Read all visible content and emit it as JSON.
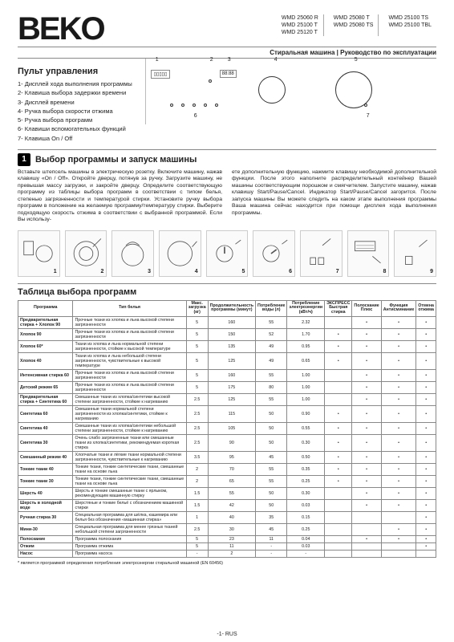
{
  "header": {
    "brand": "BEKO",
    "model_cols": [
      [
        "WMD 25060 R",
        "WMD 25100 T",
        "WMD 25120 T"
      ],
      [
        "WMD 25080 T",
        "WMD 25080 TS"
      ],
      [
        "WMD 25100 TS",
        "WMD 25100 TBL"
      ]
    ],
    "subtitle": "Стиральная машина  |  Руководство по эксплуатации"
  },
  "panel": {
    "title": "Пульт управления",
    "items": [
      "1- Дисплей хода выполнения программы",
      "2- Клавиша выбора задержки времени",
      "3- Дисплей времени",
      "4- Ручка выбора скорости отжима",
      "5- Ручка выбора программ",
      "6- Клавиши вспомогательных функций",
      "7- Клавиша On / Off"
    ],
    "callouts": [
      "1",
      "2",
      "3",
      "4",
      "5",
      "6",
      "7"
    ]
  },
  "section1": {
    "badge": "1",
    "title": "Выбор программы и запуск машины",
    "col1": "Вставьте штепсель машины в электрическую розетку. Включите машину, нажав клавишу «On / Off». Откройте дверцу, потянув за ручку. Загрузите машину, не превышая массу загрузки, и закройте дверцу. Определите соответствующую программу из таблицы выбора программ в соответствии с типом белья, степенью загрязненности и температурой стирки. Установите ручку выбора программ в положение на желаемую программу/температуру стирки. Выберите подходящую скорость отжима в соответствии с выбранной программой. Если Вы использу-",
    "col2": "ете дополнительную функцию, нажмите клавишу необходимой дополнительной функции.\nПосле этого наполните распределительный контейнер Вашей машины соответствующим порошком и смягчителем. Запустите машину, нажав клавишу Start/Pause/Cancel. Индикатор Start/Pause/Cancel загорится. После запуска машины Вы можете следить на каком этапе выполнения программы Ваша машина сейчас находится при помощи дисплея хода выполнения программы."
  },
  "illustrations": [
    1,
    2,
    3,
    4,
    5,
    6,
    7,
    8,
    9
  ],
  "table": {
    "title": "Таблица выбора программ",
    "headers": [
      "Программа",
      "Тип белья",
      "Макс. загрузка (кг)",
      "Продолжительность программы (минут)",
      "Потребление воды (л)",
      "Потребление электроэнергии (кВт/ч)",
      "ЭКСПРЕСС Быстрая стирка",
      "Полоскание Плюс",
      "Функция Антисминание",
      "Отмена отжима"
    ],
    "rows": [
      {
        "n": "Предварительная стирка + Хлопок 90",
        "d": "Прочные ткани из хлопка и льна высокой степени загрязненности",
        "v": [
          "5",
          "160",
          "55",
          "2.32",
          "",
          "•",
          "•",
          "•"
        ]
      },
      {
        "n": "Хлопок 90",
        "d": "Прочные ткани из хлопка и льна высокой степени загрязненности",
        "v": [
          "5",
          "150",
          "52",
          "1.70",
          "•",
          "•",
          "•",
          "•"
        ]
      },
      {
        "n": "Хлопок 60*",
        "d": "Ткани из хлопка и льна нормальной степени загрязненности, стойкие к высокой температуре",
        "v": [
          "5",
          "135",
          "49",
          "0.95",
          "•",
          "•",
          "•",
          "•"
        ]
      },
      {
        "n": "Хлопок 40",
        "d": "Ткани из хлопка и льна небольшой степени загрязненности, чувствительные к высокой температуре",
        "v": [
          "5",
          "125",
          "49",
          "0.65",
          "•",
          "•",
          "•",
          "•"
        ]
      },
      {
        "n": "Интенсивная стирка 60",
        "d": "Прочные ткани из хлопка и льна высокой степени загрязненности",
        "v": [
          "5",
          "160",
          "55",
          "1.00",
          "",
          "•",
          "•",
          "•"
        ]
      },
      {
        "n": "Детский режим 65",
        "d": "Прочные ткани из хлопка и льна высокой степени загрязненности",
        "v": [
          "5",
          "175",
          "80",
          "1.00",
          "",
          "•",
          "•",
          "•"
        ]
      },
      {
        "n": "Предварительная стирка + Синтетика 60",
        "d": "Смешанные ткани из хлопка/синтетики высокой степени загрязненности, стойкие к нагреванию",
        "v": [
          "2.5",
          "125",
          "55",
          "1.00",
          "",
          "•",
          "•",
          "•"
        ]
      },
      {
        "n": "Синтетика 60",
        "d": "Смешанные ткани нормальной степени загрязненности из хлопка/синтетики, стойкие к нагреванию",
        "v": [
          "2.5",
          "115",
          "50",
          "0.90",
          "•",
          "•",
          "•",
          "•"
        ]
      },
      {
        "n": "Синтетика 40",
        "d": "Смешанные ткани из хлопка/синтетики небольшой степени загрязненности, стойкие к нагреванию",
        "v": [
          "2.5",
          "105",
          "50",
          "0.55",
          "•",
          "•",
          "•",
          "•"
        ]
      },
      {
        "n": "Синтетика 30",
        "d": "Очень слабо загрязненные ткани или смешанные ткани из хлопка/синтетики, рекомендуемая короткая стирка",
        "v": [
          "2.5",
          "90",
          "50",
          "0.30",
          "•",
          "•",
          "•",
          "•"
        ]
      },
      {
        "n": "Смешанный режим 40",
        "d": "Хлопчатые ткани и лёгкие ткани нормальной степени загрязненности, чувствительные к нагреванию",
        "v": [
          "3.5",
          "95",
          "45",
          "0.50",
          "•",
          "•",
          "•",
          "•"
        ]
      },
      {
        "n": "Тонкие ткани 40",
        "d": "Тонкие ткани, тонкие синтетические ткани, смешанные ткани на основе льна",
        "v": [
          "2",
          "70",
          "55",
          "0.35",
          "•",
          "•",
          "•",
          "•"
        ]
      },
      {
        "n": "Тонкие ткани 30",
        "d": "Тонкие ткани, тонкие синтетические ткани, смешанные ткани на основе льна",
        "v": [
          "2",
          "65",
          "55",
          "0.25",
          "•",
          "•",
          "•",
          "•"
        ]
      },
      {
        "n": "Шерсть 40",
        "d": "Шерсть и тонкие смешанные ткани с ярлыком, рекомендующим машинную стирку",
        "v": [
          "1.5",
          "55",
          "50",
          "0.30",
          "",
          "•",
          "•",
          "•"
        ]
      },
      {
        "n": "Шерсть в холодной воде",
        "d": "Шерстяные и тонкие бельё с обозначением машинной стирки",
        "v": [
          "1.5",
          "42",
          "50",
          "0.03",
          "",
          "•",
          "•",
          "•"
        ]
      },
      {
        "n": "Ручная стирка 30",
        "d": "Специальная программа для шёлка, кашемира или белья без обозначения «машинная стирка»",
        "v": [
          "1",
          "40",
          "35",
          "0.15",
          "",
          "",
          "",
          "•"
        ]
      },
      {
        "n": "Мини-30",
        "d": "Специальная программа для менее грязных тканей небольшой степени загрязненности",
        "v": [
          "2.5",
          "30",
          "45",
          "0.25",
          "",
          "",
          "•",
          "•"
        ]
      },
      {
        "n": "Полоскание",
        "d": "Программа полоскания",
        "v": [
          "5",
          "23",
          "11",
          "0.04",
          "",
          "•",
          "•",
          "•"
        ]
      },
      {
        "n": "Отжим",
        "d": "Программа отжима",
        "v": [
          "5",
          "11",
          "-",
          "0.03",
          "",
          "",
          "",
          "•"
        ]
      },
      {
        "n": "Насос",
        "d": "Программа насоса",
        "v": [
          "-",
          "2",
          "-",
          "-",
          "",
          "",
          "",
          ""
        ]
      }
    ],
    "footnote": "* является программой определения потребления электроэнергии стиральной машиной (EN 60456)"
  },
  "pager": "-1- RUS"
}
